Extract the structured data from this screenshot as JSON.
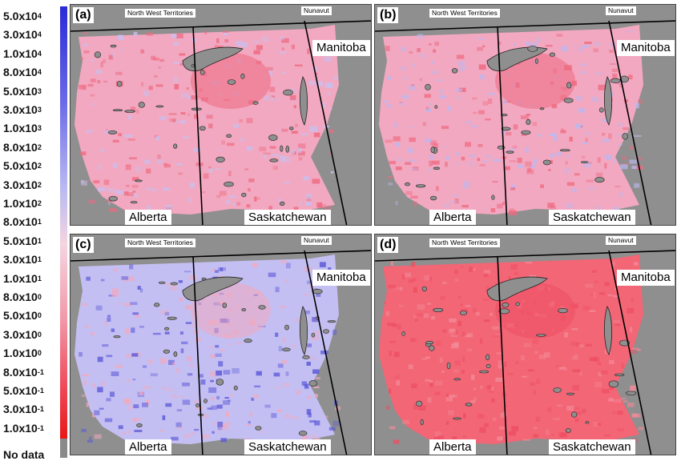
{
  "legend": {
    "labels": [
      {
        "mant": "5.0x10",
        "exp": "4"
      },
      {
        "mant": "3.0x10",
        "exp": "4"
      },
      {
        "mant": "1.0x10",
        "exp": "4"
      },
      {
        "mant": "8.0x10",
        "exp": "4"
      },
      {
        "mant": "5.0x10",
        "exp": "3"
      },
      {
        "mant": "3.0x10",
        "exp": "3"
      },
      {
        "mant": "1.0x10",
        "exp": "3"
      },
      {
        "mant": "8.0x10",
        "exp": "2"
      },
      {
        "mant": "5.0x10",
        "exp": "2"
      },
      {
        "mant": "3.0x10",
        "exp": "2"
      },
      {
        "mant": "1.0x10",
        "exp": "2"
      },
      {
        "mant": "8.0x10",
        "exp": "1"
      },
      {
        "mant": "5.0x10",
        "exp": "1"
      },
      {
        "mant": "3.0x10",
        "exp": "1"
      },
      {
        "mant": "1.0x10",
        "exp": "1"
      },
      {
        "mant": "8.0x10",
        "exp": "0"
      },
      {
        "mant": "5.0x10",
        "exp": "0"
      },
      {
        "mant": "3.0x10",
        "exp": "0"
      },
      {
        "mant": "1.0x10",
        "exp": "0"
      },
      {
        "mant": "8.0x10",
        "exp": "-1"
      },
      {
        "mant": "5.0x10",
        "exp": "-1"
      },
      {
        "mant": "3.0x10",
        "exp": "-1"
      },
      {
        "mant": "1.0x10",
        "exp": "-1"
      }
    ],
    "no_data": "No data",
    "colors": {
      "high": "#2a2ad8",
      "mid": "#f4d5e0",
      "low": "#e81818",
      "no_data": "#8a8a8a"
    }
  },
  "panels": [
    {
      "letter": "(a)",
      "nwt": "North West Territories",
      "nunavut": "Nunavut",
      "manitoba": "Manitoba",
      "alberta": "Alberta",
      "saskatchewan": "Saskatchewan",
      "fill": "#f2a8c0",
      "hot": "#ee6a80",
      "cool": "#c8c0f0"
    },
    {
      "letter": "(b)",
      "nwt": "North West Territories",
      "nunavut": "Nunavut",
      "manitoba": "Manitoba",
      "alberta": "Alberta",
      "saskatchewan": "Saskatchewan",
      "fill": "#f2a8c0",
      "hot": "#ee6a80",
      "cool": "#bcb8f0"
    },
    {
      "letter": "(c)",
      "nwt": "North West Territories",
      "nunavut": "Nunavut",
      "manitoba": "Manitoba",
      "alberta": "Alberta",
      "saskatchewan": "Saskatchewan",
      "fill": "#c4bff2",
      "hot": "#f0aac0",
      "cool": "#5a58d8"
    },
    {
      "letter": "(d)",
      "nwt": "North West Territories",
      "nunavut": "Nunavut",
      "manitoba": "Manitoba",
      "alberta": "Alberta",
      "saskatchewan": "Saskatchewan",
      "fill": "#f26676",
      "hot": "#ee4e62",
      "cool": "#f48a98"
    }
  ]
}
